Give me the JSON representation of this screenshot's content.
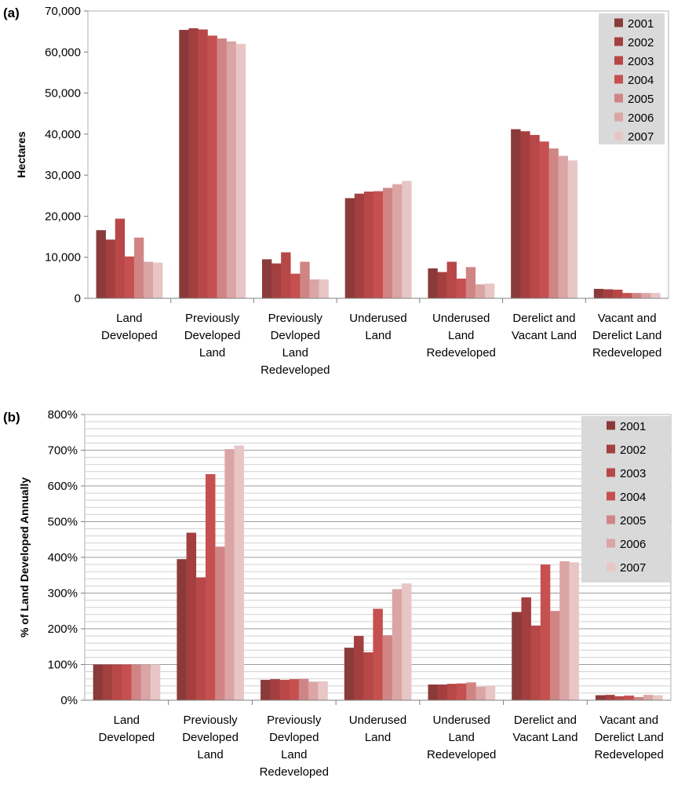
{
  "chart_data": [
    {
      "panel": "(a)",
      "type": "bar",
      "title": "",
      "xlabel": "",
      "ylabel": "Hectares",
      "ylim": [
        0,
        70000
      ],
      "yticks": [
        "0",
        "10,000",
        "20,000",
        "30,000",
        "40,000",
        "50,000",
        "60,000",
        "70,000"
      ],
      "grid": false,
      "legend_position": "top-right",
      "categories": [
        [
          "Land",
          "Developed"
        ],
        [
          "Previously",
          "Developed",
          "Land"
        ],
        [
          "Previously",
          "Devloped",
          "Land",
          "Redeveloped"
        ],
        [
          "Underused",
          "Land"
        ],
        [
          "Underused",
          "Land",
          "Redeveloped"
        ],
        [
          "Derelict and",
          "Vacant Land"
        ],
        [
          "Vacant  and",
          "Derelict Land",
          "Redeveloped"
        ]
      ],
      "series": [
        {
          "name": "2001",
          "color": "#8b3a3a",
          "values": [
            16600,
            65400,
            9500,
            24400,
            7300,
            41200,
            2300
          ]
        },
        {
          "name": "2002",
          "color": "#a43f3f",
          "values": [
            14300,
            65800,
            8500,
            25500,
            6400,
            40700,
            2200
          ]
        },
        {
          "name": "2003",
          "color": "#b84747",
          "values": [
            19400,
            65500,
            11200,
            26000,
            8900,
            39800,
            2100
          ]
        },
        {
          "name": "2004",
          "color": "#c65050",
          "values": [
            10200,
            64000,
            6000,
            26100,
            4800,
            38200,
            1300
          ]
        },
        {
          "name": "2005",
          "color": "#d08585",
          "values": [
            14800,
            63300,
            8900,
            26900,
            7600,
            36500,
            1300
          ]
        },
        {
          "name": "2006",
          "color": "#dba5a5",
          "values": [
            8900,
            62600,
            4600,
            27800,
            3400,
            34700,
            1300
          ]
        },
        {
          "name": "2007",
          "color": "#e8c6c6",
          "values": [
            8700,
            62000,
            4600,
            28600,
            3600,
            33600,
            1300
          ]
        }
      ]
    },
    {
      "panel": "(b)",
      "type": "bar",
      "title": "",
      "xlabel": "",
      "ylabel": "% of Land Developed Annually",
      "ylim": [
        0,
        800
      ],
      "yticks": [
        "0%",
        "100%",
        "200%",
        "300%",
        "400%",
        "500%",
        "600%",
        "700%",
        "800%"
      ],
      "grid": true,
      "legend_position": "top-right",
      "categories": [
        [
          "Land",
          "Developed"
        ],
        [
          "Previously",
          "Developed",
          "Land"
        ],
        [
          "Previously",
          "Devloped",
          "Land",
          "Redeveloped"
        ],
        [
          "Underused",
          "Land"
        ],
        [
          "Underused",
          "Land",
          "Redeveloped"
        ],
        [
          "Derelict and",
          "Vacant Land"
        ],
        [
          "Vacant  and",
          "Derelict Land",
          "Redeveloped"
        ]
      ],
      "series": [
        {
          "name": "2001",
          "color": "#8b3a3a",
          "values": [
            100,
            395,
            57,
            147,
            44,
            247,
            14
          ]
        },
        {
          "name": "2002",
          "color": "#a43f3f",
          "values": [
            100,
            469,
            59,
            180,
            44,
            288,
            15
          ]
        },
        {
          "name": "2003",
          "color": "#b84747",
          "values": [
            100,
            344,
            57,
            134,
            46,
            209,
            11
          ]
        },
        {
          "name": "2004",
          "color": "#c65050",
          "values": [
            100,
            633,
            59,
            256,
            47,
            380,
            13
          ]
        },
        {
          "name": "2005",
          "color": "#d08585",
          "values": [
            100,
            430,
            60,
            182,
            50,
            250,
            9
          ]
        },
        {
          "name": "2006",
          "color": "#dba5a5",
          "values": [
            100,
            703,
            52,
            311,
            38,
            389,
            15
          ]
        },
        {
          "name": "2007",
          "color": "#e8c6c6",
          "values": [
            100,
            713,
            53,
            327,
            41,
            386,
            14
          ]
        }
      ]
    }
  ]
}
